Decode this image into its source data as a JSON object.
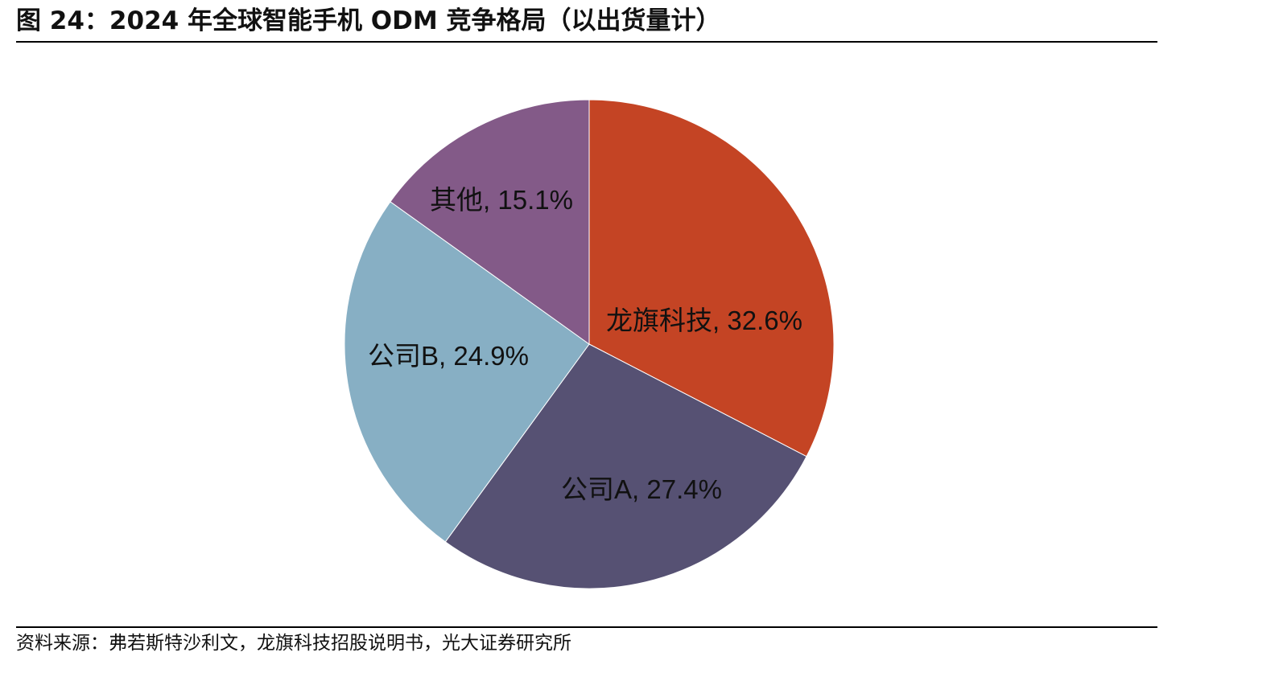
{
  "chart_data": {
    "type": "pie",
    "title": "图 24：2024 年全球智能手机 ODM 竞争格局（以出货量计）",
    "source": "资料来源：弗若斯特沙利文，龙旗科技招股说明书，光大证券研究所",
    "categories": [
      "龙旗科技",
      "公司A",
      "公司B",
      "其他"
    ],
    "values": [
      32.6,
      27.4,
      24.9,
      15.1
    ],
    "value_labels": [
      ", 32.6%",
      ", 27.4%",
      ", 24.9%",
      ", 15.1%"
    ],
    "colors": [
      "#C44424",
      "#565173",
      "#87AFC4",
      "#835A88"
    ]
  }
}
